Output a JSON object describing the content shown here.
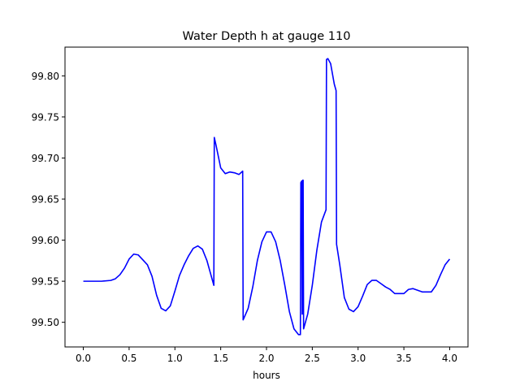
{
  "chart_data": {
    "type": "line",
    "title": "Water Depth h at gauge 110",
    "xlabel": "hours",
    "ylabel": "",
    "xlim": [
      -0.2,
      4.2
    ],
    "ylim": [
      99.47,
      99.835
    ],
    "xticks": [
      0.0,
      0.5,
      1.0,
      1.5,
      2.0,
      2.5,
      3.0,
      3.5,
      4.0
    ],
    "xtick_labels": [
      "0.0",
      "0.5",
      "1.0",
      "1.5",
      "2.0",
      "2.5",
      "3.0",
      "3.5",
      "4.0"
    ],
    "yticks": [
      99.5,
      99.55,
      99.6,
      99.65,
      99.7,
      99.75,
      99.8
    ],
    "ytick_labels": [
      "99.50",
      "99.55",
      "99.60",
      "99.65",
      "99.70",
      "99.75",
      "99.80"
    ],
    "grid": false,
    "series": [
      {
        "color": "#0000ff",
        "points": [
          [
            0.0,
            99.55
          ],
          [
            0.1,
            99.55
          ],
          [
            0.2,
            99.55
          ],
          [
            0.3,
            99.551
          ],
          [
            0.35,
            99.553
          ],
          [
            0.4,
            99.558
          ],
          [
            0.45,
            99.566
          ],
          [
            0.5,
            99.577
          ],
          [
            0.55,
            99.583
          ],
          [
            0.6,
            99.582
          ],
          [
            0.65,
            99.576
          ],
          [
            0.7,
            99.57
          ],
          [
            0.75,
            99.556
          ],
          [
            0.8,
            99.533
          ],
          [
            0.85,
            99.517
          ],
          [
            0.9,
            99.514
          ],
          [
            0.95,
            99.52
          ],
          [
            1.0,
            99.538
          ],
          [
            1.05,
            99.557
          ],
          [
            1.1,
            99.57
          ],
          [
            1.15,
            99.581
          ],
          [
            1.2,
            99.59
          ],
          [
            1.25,
            99.593
          ],
          [
            1.3,
            99.589
          ],
          [
            1.35,
            99.575
          ],
          [
            1.4,
            99.555
          ],
          [
            1.425,
            99.545
          ],
          [
            1.43,
            99.725
          ],
          [
            1.45,
            99.715
          ],
          [
            1.5,
            99.688
          ],
          [
            1.55,
            99.681
          ],
          [
            1.6,
            99.683
          ],
          [
            1.65,
            99.682
          ],
          [
            1.7,
            99.68
          ],
          [
            1.74,
            99.684
          ],
          [
            1.745,
            99.503
          ],
          [
            1.8,
            99.517
          ],
          [
            1.85,
            99.543
          ],
          [
            1.9,
            99.575
          ],
          [
            1.95,
            99.598
          ],
          [
            2.0,
            99.61
          ],
          [
            2.05,
            99.61
          ],
          [
            2.1,
            99.598
          ],
          [
            2.15,
            99.575
          ],
          [
            2.2,
            99.545
          ],
          [
            2.25,
            99.513
          ],
          [
            2.3,
            99.492
          ],
          [
            2.35,
            99.485
          ],
          [
            2.37,
            99.485
          ],
          [
            2.375,
            99.67
          ],
          [
            2.385,
            99.672
          ],
          [
            2.39,
            99.51
          ],
          [
            2.395,
            99.673
          ],
          [
            2.4,
            99.673
          ],
          [
            2.405,
            99.492
          ],
          [
            2.45,
            99.51
          ],
          [
            2.5,
            99.545
          ],
          [
            2.55,
            99.588
          ],
          [
            2.6,
            99.622
          ],
          [
            2.65,
            99.637
          ],
          [
            2.655,
            99.82
          ],
          [
            2.67,
            99.821
          ],
          [
            2.7,
            99.815
          ],
          [
            2.74,
            99.79
          ],
          [
            2.76,
            99.782
          ],
          [
            2.765,
            99.595
          ],
          [
            2.8,
            99.57
          ],
          [
            2.85,
            99.53
          ],
          [
            2.9,
            99.516
          ],
          [
            2.95,
            99.513
          ],
          [
            3.0,
            99.519
          ],
          [
            3.05,
            99.532
          ],
          [
            3.1,
            99.546
          ],
          [
            3.15,
            99.551
          ],
          [
            3.2,
            99.551
          ],
          [
            3.25,
            99.547
          ],
          [
            3.3,
            99.543
          ],
          [
            3.35,
            99.54
          ],
          [
            3.4,
            99.535
          ],
          [
            3.45,
            99.535
          ],
          [
            3.5,
            99.535
          ],
          [
            3.55,
            99.54
          ],
          [
            3.6,
            99.541
          ],
          [
            3.65,
            99.539
          ],
          [
            3.7,
            99.537
          ],
          [
            3.75,
            99.537
          ],
          [
            3.8,
            99.537
          ],
          [
            3.85,
            99.545
          ],
          [
            3.9,
            99.558
          ],
          [
            3.95,
            99.57
          ],
          [
            4.0,
            99.577
          ]
        ]
      }
    ]
  }
}
